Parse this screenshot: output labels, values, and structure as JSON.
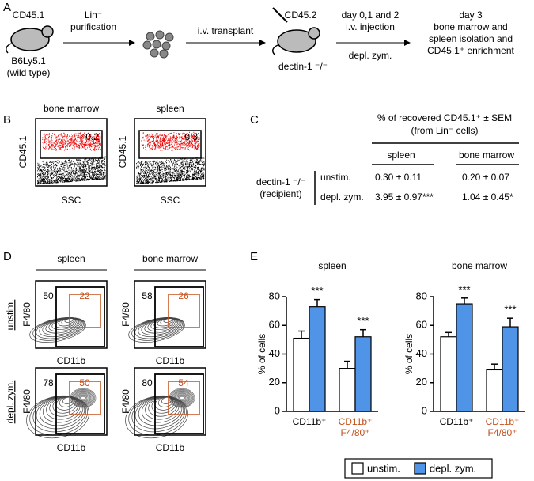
{
  "panel_labels": [
    "A",
    "B",
    "C",
    "D",
    "E"
  ],
  "schematic": {
    "donor_marker": "CD45.1",
    "donor_strain": "B6Ly5.1",
    "donor_note": "(wild type)",
    "step1_line1": "Lin⁻",
    "step1_line2": "purification",
    "step2": "i.v. transplant",
    "recipient_marker": "CD45.2",
    "recipient_strain": "dectin-1 ⁻/⁻",
    "step3_line1": "day 0,1 and 2",
    "step3_line2": "i.v. injection",
    "step3_below": "depl. zym.",
    "end_lines": [
      "day 3",
      "bone marrow and",
      "spleen isolation and",
      "CD45.1⁺ enrichment"
    ]
  },
  "flow": {
    "y_label": "CD45.1",
    "x_label": "SSC",
    "plots": [
      {
        "title": "bone marrow",
        "gate": "0.2"
      },
      {
        "title": "spleen",
        "gate": "0.3"
      }
    ]
  },
  "table": {
    "header_line1": "% of recovered CD45.1⁺ ± SEM",
    "header_line2": "(from Lin⁻ cells)",
    "columns": [
      "spleen",
      "bone marrow"
    ],
    "row_group_line1": "dectin-1 ⁻/⁻",
    "row_group_line2": "(recipient)",
    "rows": [
      [
        "unstim.",
        "0.30 ± 0.11",
        "0.20 ± 0.07"
      ],
      [
        "depl. zym.",
        "3.95 ± 0.97***",
        "1.04 ± 0.45*"
      ]
    ]
  },
  "contours": {
    "columns": [
      "spleen",
      "bone marrow"
    ],
    "rows": [
      "unstim.",
      "depl. zym."
    ],
    "y_label": "F4/80",
    "x_label": "CD11b",
    "gates": [
      [
        [
          "50",
          "22"
        ],
        [
          "58",
          "26"
        ]
      ],
      [
        [
          "78",
          "50"
        ],
        [
          "80",
          "54"
        ]
      ]
    ]
  },
  "chart_data": {
    "type": "bar",
    "y_label": "% of cells",
    "ylim": [
      0,
      80
    ],
    "yticks": [
      0,
      20,
      40,
      60,
      80
    ],
    "categories": [
      "CD11b⁺",
      "CD11b⁺ F4/80⁺"
    ],
    "category_colors": [
      "#000000",
      "#c4501c"
    ],
    "series": [
      {
        "name": "unstim.",
        "color": "#ffffff"
      },
      {
        "name": "depl. zym.",
        "color": "#4f94e6"
      }
    ],
    "legend": "bottom",
    "facets": [
      {
        "title": "spleen",
        "values": [
          [
            51,
            30
          ],
          [
            73,
            52
          ]
        ],
        "errors": [
          [
            5,
            5
          ],
          [
            5,
            5
          ]
        ],
        "significance": [
          "***",
          "***"
        ]
      },
      {
        "title": "bone marrow",
        "values": [
          [
            52,
            29
          ],
          [
            75,
            59
          ]
        ],
        "errors": [
          [
            3,
            4
          ],
          [
            4,
            6
          ]
        ],
        "significance": [
          "***",
          "***"
        ]
      }
    ]
  }
}
